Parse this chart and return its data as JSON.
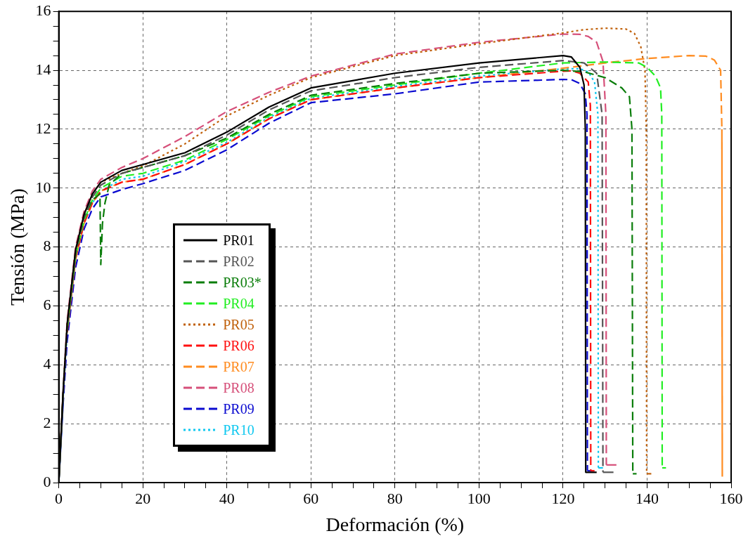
{
  "chart_data": {
    "type": "line",
    "xlabel": "Deformación (%)",
    "ylabel": "Tensión (MPa)",
    "xlim": [
      0,
      160
    ],
    "xticks": [
      0,
      {
        "value": 5,
        "label": null
      },
      {
        "value": 10,
        "label": null
      },
      {
        "value": 15,
        "label": null
      },
      20,
      {
        "value": 25,
        "label": null
      },
      {
        "value": 30,
        "label": null
      },
      {
        "value": 35,
        "label": null
      },
      40,
      {
        "value": 45,
        "label": null
      },
      {
        "value": 50,
        "label": null
      },
      {
        "value": 55,
        "label": null
      },
      60,
      {
        "value": 65,
        "label": null
      },
      {
        "value": 70,
        "label": null
      },
      {
        "value": 75,
        "label": null
      },
      80,
      {
        "value": 85,
        "label": null
      },
      {
        "value": 90,
        "label": null
      },
      {
        "value": 95,
        "label": null
      },
      100,
      {
        "value": 105,
        "label": null
      },
      {
        "value": 110,
        "label": null
      },
      {
        "value": 115,
        "label": null
      },
      120,
      {
        "value": 125,
        "label": null
      },
      {
        "value": 130,
        "label": null
      },
      {
        "value": 135,
        "label": null
      },
      140,
      {
        "value": 145,
        "label": null
      },
      {
        "value": 150,
        "label": null
      },
      {
        "value": 155,
        "label": null
      },
      160
    ],
    "ylim": [
      0,
      16
    ],
    "yticks": [
      0,
      {
        "value": 0.5,
        "label": null
      },
      {
        "value": 1,
        "label": null
      },
      {
        "value": 1.5,
        "label": null
      },
      2,
      {
        "value": 2.5,
        "label": null
      },
      {
        "value": 3,
        "label": null
      },
      {
        "value": 3.5,
        "label": null
      },
      4,
      {
        "value": 4.5,
        "label": null
      },
      {
        "value": 5,
        "label": null
      },
      {
        "value": 5.5,
        "label": null
      },
      6,
      {
        "value": 6.5,
        "label": null
      },
      {
        "value": 7,
        "label": null
      },
      {
        "value": 7.5,
        "label": null
      },
      8,
      {
        "value": 8.5,
        "label": null
      },
      {
        "value": 9,
        "label": null
      },
      {
        "value": 9.5,
        "label": null
      },
      10,
      {
        "value": 10.5,
        "label": null
      },
      {
        "value": 11,
        "label": null
      },
      {
        "value": 11.5,
        "label": null
      },
      12,
      {
        "value": 12.5,
        "label": null
      },
      {
        "value": 13,
        "label": null
      },
      {
        "value": 13.5,
        "label": null
      },
      14,
      {
        "value": 14.5,
        "label": null
      },
      {
        "value": 15,
        "label": null
      },
      {
        "value": 15.5,
        "label": null
      },
      16
    ],
    "grid": true,
    "legend": "left",
    "marker": "none",
    "series": [
      {
        "name": "PR01",
        "color": "#000000",
        "line_style": "solid",
        "x": [
          0,
          1,
          2,
          4,
          6,
          8,
          10,
          15,
          20,
          30,
          40,
          50,
          60,
          80,
          100,
          120,
          122,
          124,
          125,
          125.3,
          125.4,
          128
        ],
        "values": [
          0,
          3.0,
          5.4,
          7.9,
          9.1,
          9.8,
          10.2,
          10.6,
          10.8,
          11.2,
          11.9,
          12.75,
          13.4,
          13.9,
          14.25,
          14.5,
          14.45,
          14.1,
          13.5,
          12,
          0.35,
          0.35
        ]
      },
      {
        "name": "PR02",
        "color": "#555555",
        "line_style": "dashed",
        "x": [
          0,
          1,
          2,
          4,
          6,
          8,
          10,
          15,
          20,
          30,
          40,
          50,
          60,
          80,
          100,
          120,
          125,
          128,
          129.3,
          129.5,
          132
        ],
        "values": [
          0,
          2.9,
          5.3,
          7.8,
          9.0,
          9.7,
          10.1,
          10.5,
          10.7,
          11.1,
          11.8,
          12.65,
          13.3,
          13.75,
          14.1,
          14.33,
          14.25,
          13.9,
          12.5,
          0.35,
          0.35
        ]
      },
      {
        "name": "PR03*",
        "color": "#0a7d0a",
        "line_style": "dashed",
        "x": [
          0,
          1,
          2,
          4,
          6,
          8,
          9.8,
          10,
          10.4,
          11,
          12,
          15,
          20,
          30,
          40,
          50,
          60,
          80,
          100,
          120,
          125,
          130,
          134,
          135.8,
          136.4,
          136.6,
          137.5
        ],
        "values": [
          0,
          2.9,
          5.3,
          7.8,
          9.0,
          9.6,
          9.8,
          7.4,
          8.8,
          9.5,
          10.1,
          10.5,
          10.7,
          11.1,
          11.7,
          12.5,
          13.15,
          13.55,
          13.9,
          14.0,
          13.95,
          13.75,
          13.4,
          13.1,
          12.0,
          0.3,
          0.3
        ]
      },
      {
        "name": "PR04",
        "color": "#22ee22",
        "line_style": "dashed",
        "x": [
          2,
          4,
          6,
          8,
          10,
          15,
          20,
          30,
          40,
          50,
          60,
          80,
          100,
          120,
          130,
          138,
          140,
          142,
          143.2,
          143.5,
          143.6,
          144.5
        ],
        "values": [
          5.2,
          7.7,
          8.9,
          9.6,
          10.0,
          10.4,
          10.5,
          10.95,
          11.65,
          12.45,
          13.1,
          13.5,
          13.9,
          14.25,
          14.28,
          14.25,
          14.1,
          13.8,
          13.4,
          12.5,
          0.5,
          0.5
        ]
      },
      {
        "name": "PR05",
        "color": "#c0600a",
        "line_style": "dotted",
        "x": [
          0,
          1,
          2,
          4,
          6,
          8,
          10,
          15,
          20,
          30,
          40,
          50,
          60,
          80,
          100,
          120,
          125,
          130,
          135,
          137,
          138.5,
          139.5,
          139.8,
          139.9,
          141
        ],
        "values": [
          0,
          3.0,
          5.4,
          7.9,
          9.1,
          9.8,
          10.2,
          10.5,
          10.75,
          11.5,
          12.45,
          13.15,
          13.75,
          14.5,
          14.9,
          15.27,
          15.38,
          15.43,
          15.4,
          15.25,
          14.8,
          14.0,
          12.0,
          0.3,
          0.3
        ]
      },
      {
        "name": "PR06",
        "color": "#ff1010",
        "line_style": "dashed",
        "x": [
          2,
          4,
          6,
          8,
          10,
          15,
          20,
          30,
          40,
          50,
          60,
          80,
          100,
          120,
          122,
          124,
          126,
          126.5,
          126.6,
          127.5
        ],
        "values": [
          5.1,
          7.6,
          8.8,
          9.5,
          9.9,
          10.2,
          10.3,
          10.8,
          11.5,
          12.35,
          13.0,
          13.4,
          13.75,
          13.97,
          13.98,
          13.9,
          13.6,
          12.8,
          0.4,
          0.4
        ]
      },
      {
        "name": "PR07",
        "color": "#ff8c20",
        "line_style": "dashed",
        "x": [
          4,
          6,
          8,
          10,
          15,
          20,
          30,
          40,
          50,
          60,
          80,
          100,
          120,
          130,
          140,
          150,
          154,
          156,
          157.5,
          157.8,
          157.9
        ],
        "values": [
          7.6,
          8.8,
          9.5,
          9.9,
          10.2,
          10.3,
          10.8,
          11.5,
          12.35,
          13.0,
          13.4,
          13.75,
          14.07,
          14.25,
          14.4,
          14.5,
          14.48,
          14.35,
          14.0,
          12.0,
          0.2
        ]
      },
      {
        "name": "PR08",
        "color": "#d6507a",
        "line_style": "dashed",
        "x": [
          0,
          1,
          2,
          4,
          6,
          8,
          10,
          15,
          20,
          30,
          40,
          50,
          60,
          80,
          100,
          120,
          124,
          126,
          128,
          129.5,
          130.2,
          130.3,
          132.7
        ],
        "values": [
          0,
          3.0,
          5.5,
          8.0,
          9.2,
          9.9,
          10.3,
          10.7,
          11.0,
          11.75,
          12.6,
          13.25,
          13.8,
          14.55,
          14.95,
          15.23,
          15.22,
          15.15,
          14.95,
          14.3,
          12.5,
          0.6,
          0.6
        ]
      },
      {
        "name": "PR09",
        "color": "#0a0ad0",
        "line_style": "dashed",
        "x": [
          0,
          1,
          2,
          4,
          6,
          8,
          10,
          15,
          20,
          30,
          40,
          50,
          60,
          80,
          100,
          120,
          122,
          124,
          125.3,
          125.7,
          125.8,
          127
        ],
        "values": [
          0,
          2.6,
          4.8,
          7.3,
          8.6,
          9.3,
          9.7,
          9.95,
          10.15,
          10.6,
          11.3,
          12.2,
          12.9,
          13.2,
          13.6,
          13.69,
          13.68,
          13.55,
          13.2,
          12.5,
          0.4,
          0.4
        ]
      },
      {
        "name": "PR10",
        "color": "#10c8f0",
        "line_style": "dotted",
        "x": [
          0,
          1,
          2,
          4,
          6,
          8,
          10,
          15,
          20,
          30,
          40,
          50,
          60,
          80,
          100,
          120,
          124,
          126,
          127.5,
          128.3,
          128.4,
          129.5
        ],
        "values": [
          0,
          2.8,
          5.1,
          7.6,
          8.8,
          9.5,
          9.9,
          10.3,
          10.4,
          10.9,
          11.55,
          12.4,
          13.05,
          13.45,
          13.8,
          14.05,
          14.05,
          13.95,
          13.6,
          12.5,
          0.5,
          0.5
        ]
      }
    ]
  }
}
